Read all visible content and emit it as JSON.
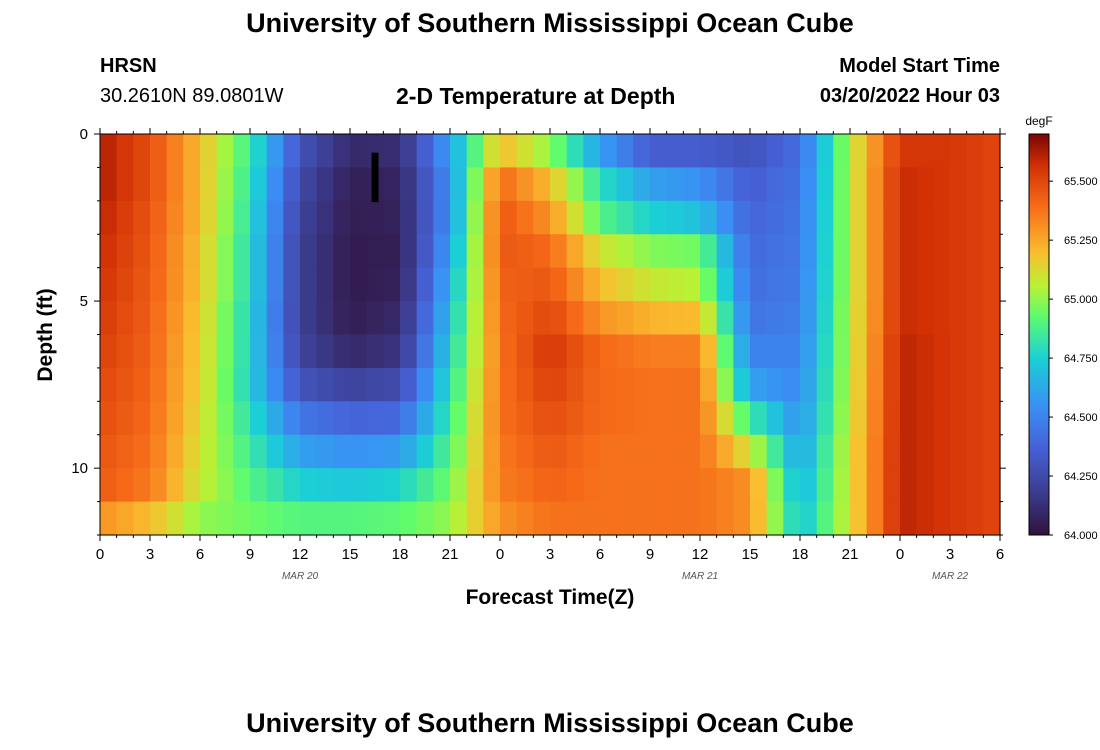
{
  "header": {
    "title": "University of Southern Mississippi Ocean Cube",
    "station": "HRSN",
    "coords": "30.2610N  89.0801W",
    "subtitle": "2-D Temperature at Depth",
    "model_start_label": "Model Start Time",
    "model_start_value": "03/20/2022 Hour 03"
  },
  "footer": {
    "title": "University of Southern Mississippi Ocean Cube"
  },
  "chart_data": {
    "type": "heatmap",
    "title": "2-D Temperature at Depth",
    "xlabel": "Forecast Time(Z)",
    "ylabel": "Depth (ft)",
    "x_tick_labels": [
      "0",
      "3",
      "6",
      "9",
      "12",
      "15",
      "18",
      "21",
      "0",
      "3",
      "6",
      "9",
      "12",
      "15",
      "18",
      "21",
      "0",
      "3",
      "6"
    ],
    "x_range_hours": [
      0,
      54
    ],
    "date_labels": [
      {
        "text": "MAR 20",
        "hour": 12
      },
      {
        "text": "MAR 21",
        "hour": 36
      },
      {
        "text": "MAR 22",
        "hour": 51
      }
    ],
    "y_tick_labels": [
      "0",
      "5",
      "10"
    ],
    "y_range_ft": [
      0,
      12
    ],
    "colorbar": {
      "unit": "degF",
      "min": 64.0,
      "max": 65.7,
      "tick_labels": [
        "65.500",
        "65.250",
        "65.000",
        "64.750",
        "64.500",
        "64.250",
        "64.000"
      ],
      "tick_values": [
        65.5,
        65.25,
        65.0,
        64.75,
        64.5,
        64.25,
        64.0
      ]
    },
    "marker": {
      "hour": 16.5,
      "depth_top_ft": 0.5,
      "depth_bottom_ft": 1.5
    },
    "depth_levels_ft": [
      0.5,
      1.5,
      2.5,
      3.5,
      4.5,
      5.5,
      6.5,
      7.5,
      8.5,
      9.5,
      10.5,
      11.5
    ],
    "series": [
      {
        "name": "hour 0",
        "values": [
          65.62,
          65.62,
          65.6,
          65.58,
          65.56,
          65.54,
          65.52,
          65.5,
          65.48,
          65.46,
          65.44,
          65.3
        ]
      },
      {
        "name": "hour 3",
        "values": [
          65.48,
          65.48,
          65.46,
          65.45,
          65.44,
          65.43,
          65.42,
          65.41,
          65.4,
          65.38,
          65.36,
          65.2
        ]
      },
      {
        "name": "hour 6",
        "values": [
          65.2,
          65.2,
          65.2,
          65.18,
          65.18,
          65.16,
          65.15,
          65.14,
          65.12,
          65.1,
          65.08,
          65.0
        ]
      },
      {
        "name": "hour 9",
        "values": [
          64.85,
          64.82,
          64.8,
          64.78,
          64.78,
          64.76,
          64.76,
          64.75,
          64.8,
          64.85,
          64.9,
          64.95
        ]
      },
      {
        "name": "hour 12",
        "values": [
          64.3,
          64.25,
          64.22,
          64.2,
          64.2,
          64.2,
          64.22,
          64.3,
          64.45,
          64.6,
          64.75,
          64.9
        ]
      },
      {
        "name": "hour 15",
        "values": [
          64.1,
          64.06,
          64.05,
          64.04,
          64.04,
          64.05,
          64.1,
          64.22,
          64.38,
          64.55,
          64.72,
          64.9
        ]
      },
      {
        "name": "hour 18",
        "values": [
          64.12,
          64.08,
          64.07,
          64.06,
          64.07,
          64.1,
          64.15,
          64.26,
          64.4,
          64.58,
          64.76,
          64.92
        ]
      },
      {
        "name": "hour 21",
        "values": [
          64.6,
          64.55,
          64.55,
          64.6,
          64.65,
          64.7,
          64.75,
          64.8,
          64.85,
          64.9,
          64.95,
          65.0
        ]
      },
      {
        "name": "hour 24",
        "values": [
          65.2,
          65.4,
          65.45,
          65.45,
          65.42,
          65.4,
          65.38,
          65.38,
          65.38,
          65.36,
          65.35,
          65.3
        ]
      },
      {
        "name": "hour 27",
        "values": [
          65.0,
          65.2,
          65.3,
          65.4,
          65.45,
          65.5,
          65.55,
          65.52,
          65.48,
          65.45,
          65.42,
          65.38
        ]
      },
      {
        "name": "hour 30",
        "values": [
          64.6,
          64.8,
          64.9,
          65.1,
          65.2,
          65.3,
          65.4,
          65.4,
          65.4,
          65.38,
          65.38,
          65.38
        ]
      },
      {
        "name": "hour 33",
        "values": [
          64.35,
          64.6,
          64.75,
          64.98,
          65.08,
          65.22,
          65.35,
          65.38,
          65.38,
          65.38,
          65.38,
          65.38
        ]
      },
      {
        "name": "hour 36",
        "values": [
          64.35,
          64.55,
          64.7,
          64.95,
          65.05,
          65.2,
          65.35,
          65.38,
          65.38,
          65.38,
          65.38,
          65.38
        ]
      },
      {
        "name": "hour 39",
        "values": [
          64.3,
          64.35,
          64.38,
          64.4,
          64.42,
          64.45,
          64.5,
          64.6,
          64.85,
          65.1,
          65.3,
          65.3
        ]
      },
      {
        "name": "hour 42",
        "values": [
          64.42,
          64.44,
          64.45,
          64.46,
          64.47,
          64.48,
          64.5,
          64.52,
          64.55,
          64.6,
          64.65,
          64.7
        ]
      },
      {
        "name": "hour 45",
        "values": [
          65.05,
          65.05,
          65.05,
          65.05,
          65.05,
          65.06,
          65.06,
          65.07,
          65.08,
          65.1,
          65.1,
          65.1
        ]
      },
      {
        "name": "hour 48",
        "values": [
          65.55,
          65.58,
          65.58,
          65.58,
          65.58,
          65.58,
          65.6,
          65.6,
          65.6,
          65.6,
          65.6,
          65.6
        ]
      },
      {
        "name": "hour 51",
        "values": [
          65.55,
          65.55,
          65.55,
          65.55,
          65.55,
          65.55,
          65.55,
          65.55,
          65.55,
          65.55,
          65.55,
          65.55
        ]
      },
      {
        "name": "hour 54",
        "values": [
          65.5,
          65.5,
          65.5,
          65.5,
          65.5,
          65.5,
          65.5,
          65.5,
          65.5,
          65.5,
          65.5,
          65.5
        ]
      }
    ]
  }
}
